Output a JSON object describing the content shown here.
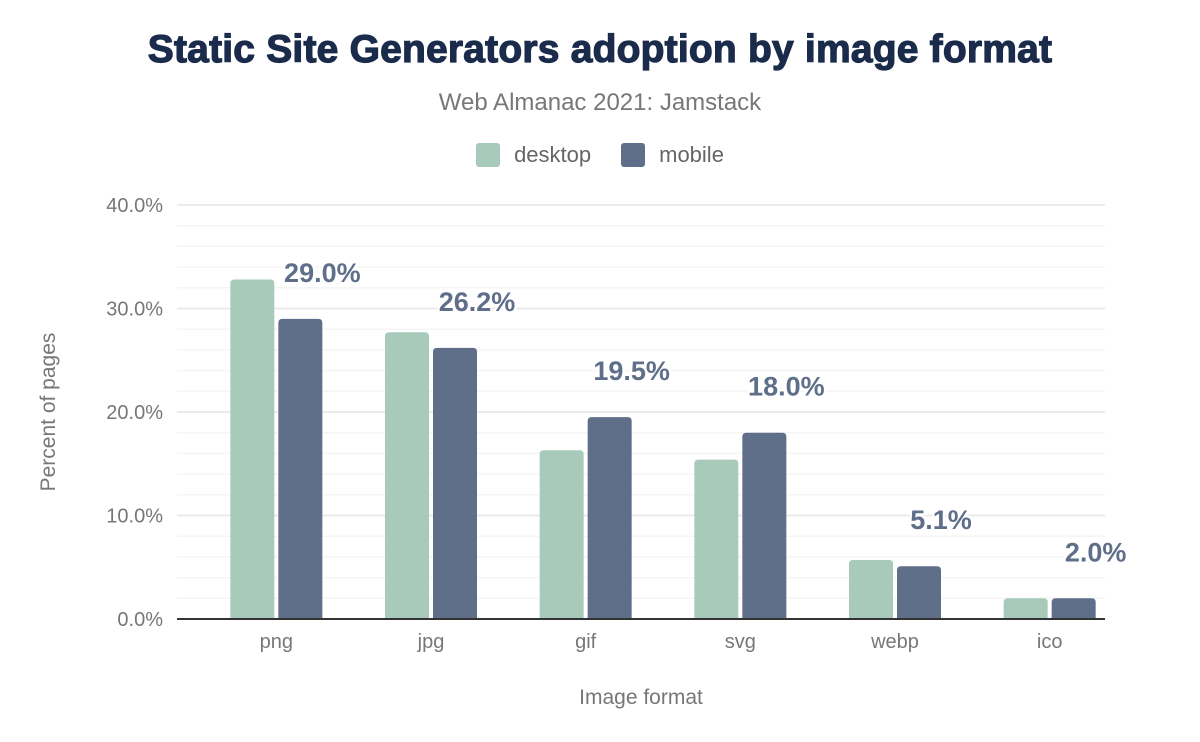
{
  "header": {
    "title": "Static Site Generators adoption by image format",
    "subtitle": "Web Almanac 2021: Jamstack"
  },
  "legend": [
    {
      "label": "desktop",
      "color": "#a8cabb"
    },
    {
      "label": "mobile",
      "color": "#5f6f8a"
    }
  ],
  "chart_data": {
    "type": "bar",
    "title": "Static Site Generators adoption by image format",
    "subtitle": "Web Almanac 2021: Jamstack",
    "xlabel": "Image format",
    "ylabel": "Percent of pages",
    "categories": [
      "png",
      "jpg",
      "gif",
      "svg",
      "webp",
      "ico"
    ],
    "series": [
      {
        "name": "desktop",
        "color": "#a8cabb",
        "values": [
          32.8,
          27.7,
          16.3,
          15.4,
          5.7,
          2.0
        ]
      },
      {
        "name": "mobile",
        "color": "#5f6f8a",
        "values": [
          29.0,
          26.2,
          19.5,
          18.0,
          5.1,
          2.0
        ]
      }
    ],
    "data_labels": [
      "29.0%",
      "26.2%",
      "19.5%",
      "18.0%",
      "5.1%",
      "2.0%"
    ],
    "data_labels_series": "mobile",
    "ylim": [
      0,
      40
    ],
    "yticks": [
      "0.0%",
      "10.0%",
      "20.0%",
      "30.0%",
      "40.0%"
    ],
    "grid": true,
    "minor_grid_step": 2,
    "legend_position": "top"
  }
}
